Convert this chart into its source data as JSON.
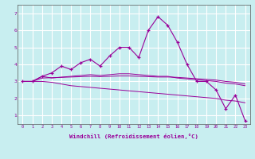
{
  "xlabel": "Windchill (Refroidissement éolien,°C)",
  "bg_color": "#c8eef0",
  "line_color": "#990099",
  "grid_color": "#ffffff",
  "x_values": [
    0,
    1,
    2,
    3,
    4,
    5,
    6,
    7,
    8,
    9,
    10,
    11,
    12,
    13,
    14,
    15,
    16,
    17,
    18,
    19,
    20,
    21,
    22,
    23
  ],
  "series1": [
    3.0,
    3.0,
    3.3,
    3.5,
    3.9,
    3.7,
    4.1,
    4.3,
    3.9,
    4.5,
    5.0,
    5.0,
    4.4,
    6.0,
    6.8,
    6.3,
    5.3,
    4.0,
    3.0,
    3.0,
    2.5,
    1.4,
    2.2,
    0.7
  ],
  "series2": [
    3.0,
    3.0,
    3.3,
    3.2,
    3.25,
    3.3,
    3.35,
    3.4,
    3.35,
    3.4,
    3.45,
    3.45,
    3.4,
    3.35,
    3.3,
    3.3,
    3.2,
    3.15,
    3.1,
    3.05,
    3.0,
    2.9,
    2.85,
    2.75
  ],
  "series3": [
    3.0,
    3.0,
    3.2,
    3.22,
    3.24,
    3.26,
    3.28,
    3.3,
    3.28,
    3.3,
    3.32,
    3.32,
    3.3,
    3.28,
    3.26,
    3.26,
    3.24,
    3.2,
    3.16,
    3.12,
    3.08,
    3.0,
    2.95,
    2.85
  ],
  "series4": [
    3.0,
    3.0,
    3.0,
    2.95,
    2.85,
    2.75,
    2.7,
    2.65,
    2.6,
    2.55,
    2.5,
    2.45,
    2.4,
    2.35,
    2.3,
    2.25,
    2.2,
    2.15,
    2.1,
    2.05,
    2.0,
    1.9,
    1.85,
    1.75
  ],
  "ylim": [
    0.5,
    7.5
  ],
  "yticks": [
    1,
    2,
    3,
    4,
    5,
    6,
    7
  ],
  "xticks": [
    0,
    1,
    2,
    3,
    4,
    5,
    6,
    7,
    8,
    9,
    10,
    11,
    12,
    13,
    14,
    15,
    16,
    17,
    18,
    19,
    20,
    21,
    22,
    23
  ],
  "xlim": [
    -0.5,
    23.5
  ]
}
